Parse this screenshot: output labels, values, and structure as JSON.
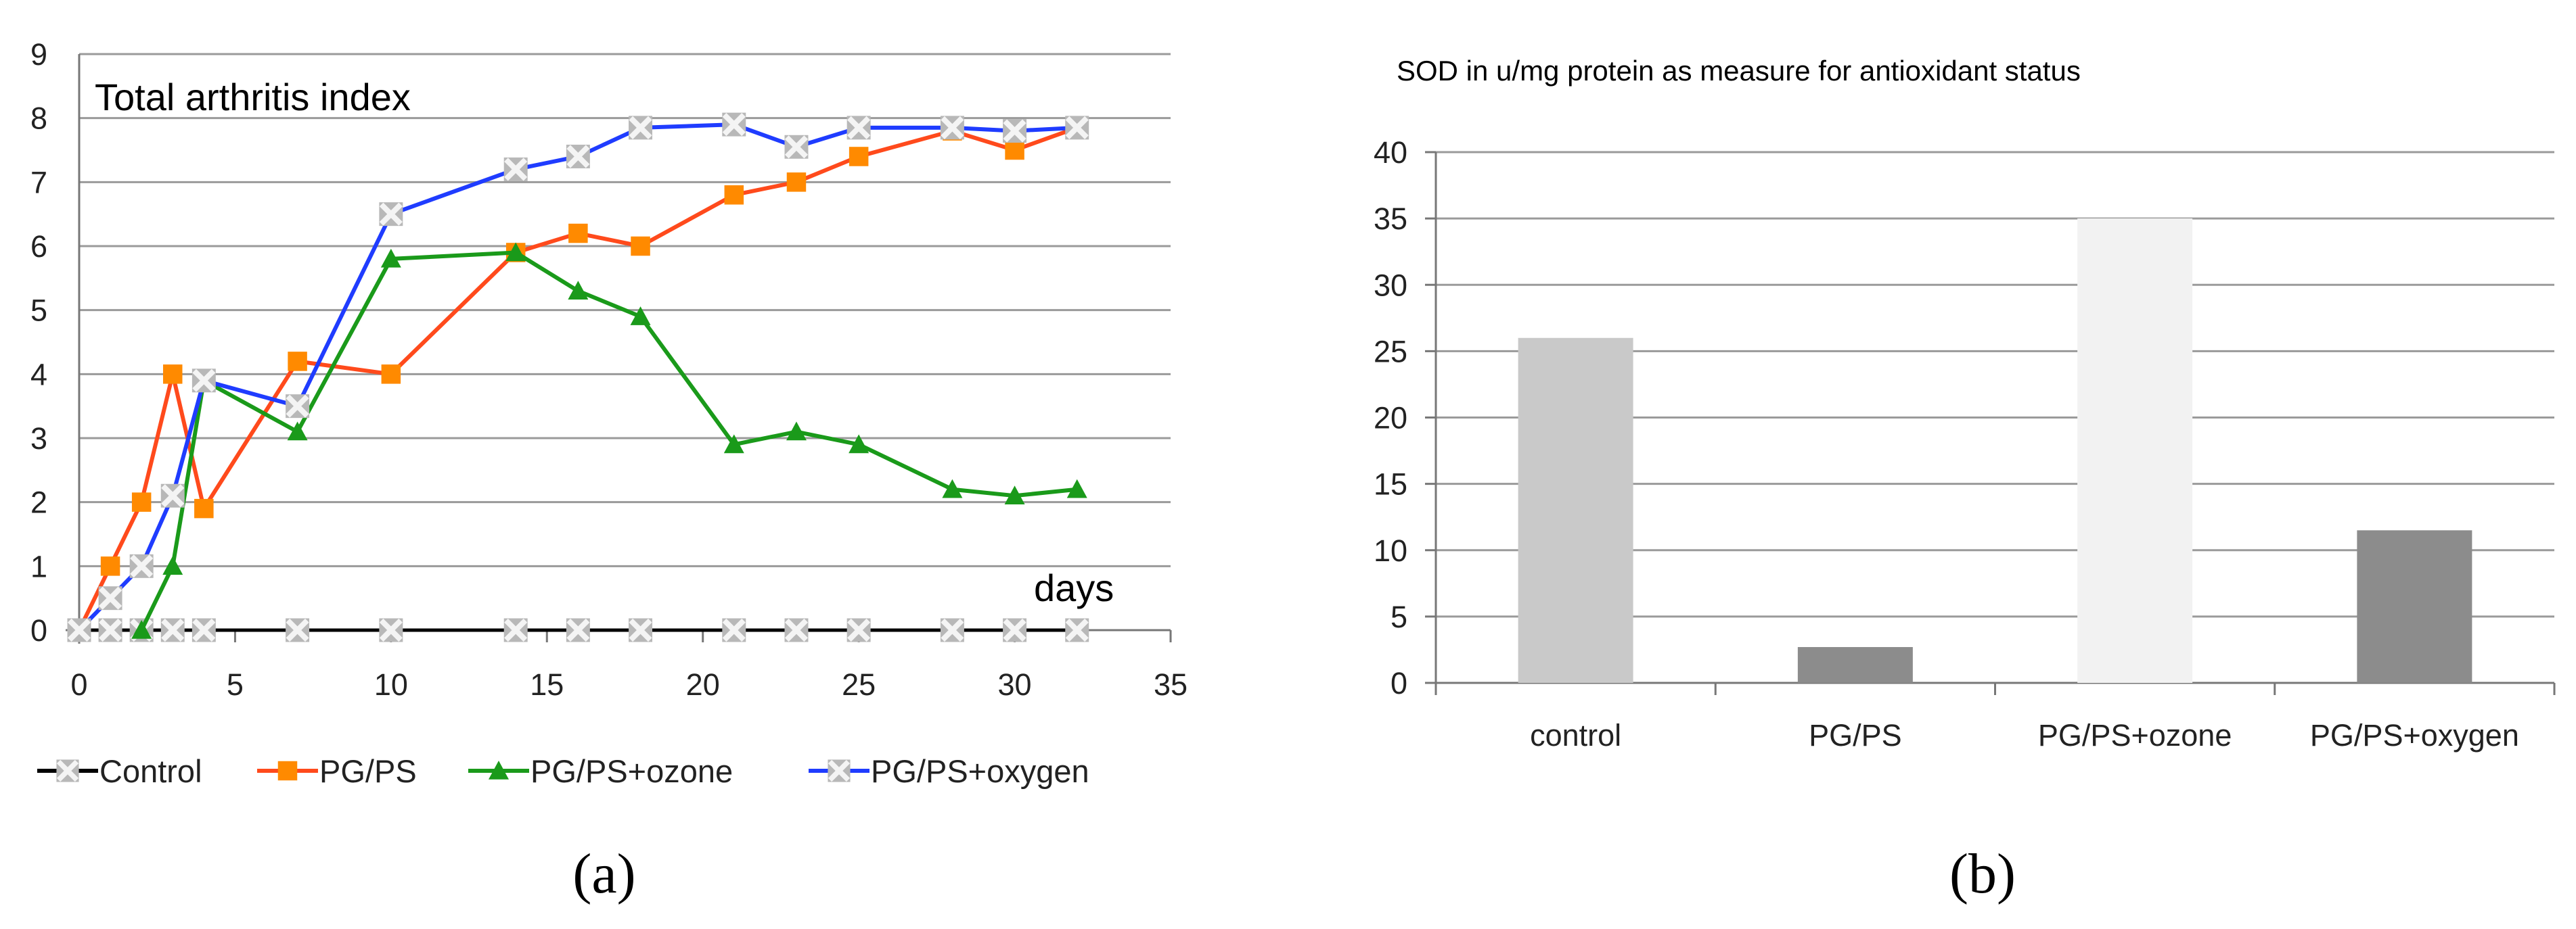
{
  "chart_data": [
    {
      "type": "line",
      "title": "Total arthritis index",
      "xlabel": "days",
      "ylabel": "",
      "xlim": [
        0,
        35
      ],
      "ylim": [
        0,
        9
      ],
      "xticks": [
        0,
        5,
        10,
        15,
        20,
        25,
        30,
        35
      ],
      "yticks": [
        0,
        1,
        2,
        3,
        4,
        5,
        6,
        7,
        8,
        9
      ],
      "grid": "horizontal",
      "legend_position": "bottom",
      "series": [
        {
          "name": "Control",
          "color": "#000000",
          "marker": "x-box",
          "marker_color": "#b8b8b8",
          "x": [
            0,
            1,
            2,
            3,
            4,
            7,
            10,
            14,
            16,
            18,
            21,
            23,
            25,
            28,
            30,
            32
          ],
          "y": [
            0,
            0,
            0,
            0,
            0,
            0,
            0,
            0,
            0,
            0,
            0,
            0,
            0,
            0,
            0,
            0
          ]
        },
        {
          "name": "PG/PS",
          "color": "#ff4a1c",
          "marker": "square",
          "marker_color": "#ff8a00",
          "x": [
            0,
            1,
            2,
            3,
            4,
            7,
            10,
            14,
            16,
            18,
            21,
            23,
            25,
            28,
            30,
            32
          ],
          "y": [
            0,
            1,
            2,
            4,
            1.9,
            4.2,
            4,
            5.9,
            6.2,
            6,
            6.8,
            7,
            7.4,
            7.8,
            7.5,
            7.85
          ]
        },
        {
          "name": "PG/PS+ozone",
          "color": "#1a9a1a",
          "marker": "triangle",
          "marker_color": "#1a9a1a",
          "x": [
            2,
            3,
            4,
            7,
            10,
            14,
            16,
            18,
            21,
            23,
            25,
            28,
            30,
            32
          ],
          "y": [
            0,
            1,
            3.9,
            3.1,
            5.8,
            5.9,
            5.3,
            4.9,
            2.9,
            3.1,
            2.9,
            2.2,
            2.1,
            2.2
          ]
        },
        {
          "name": "PG/PS+oxygen",
          "color": "#1f3cff",
          "marker": "x-box",
          "marker_color": "#b8b8b8",
          "x": [
            0,
            1,
            2,
            3,
            4,
            7,
            10,
            14,
            16,
            18,
            21,
            23,
            25,
            28,
            30,
            32
          ],
          "y": [
            0,
            0.5,
            1,
            2.1,
            3.9,
            3.5,
            6.5,
            7.2,
            7.4,
            7.85,
            7.9,
            7.55,
            7.85,
            7.85,
            7.8,
            7.85
          ]
        }
      ]
    },
    {
      "type": "bar",
      "title": "SOD in u/mg protein as  measure for antioxidant status",
      "xlabel": "",
      "ylabel": "",
      "ylim": [
        0,
        40
      ],
      "yticks": [
        0,
        5,
        10,
        15,
        20,
        25,
        30,
        35,
        40
      ],
      "grid": "horizontal",
      "categories": [
        "control",
        "PG/PS",
        "PG/PS+ozone",
        "PG/PS+oxygen"
      ],
      "values": [
        26,
        2.7,
        35,
        11.5
      ],
      "colors": [
        "#c9c9c9",
        "#8c8c8c",
        "#f2f2f2",
        "#8c8c8c"
      ]
    }
  ],
  "panels": {
    "a": "(a)",
    "b": "(b)"
  }
}
